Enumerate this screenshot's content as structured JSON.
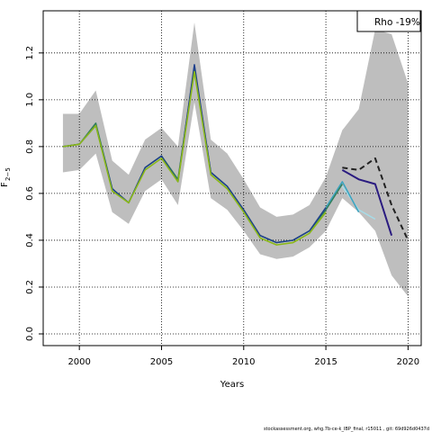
{
  "chart_data": {
    "type": "line",
    "title": "",
    "xlabel": "Years",
    "ylabel": "F",
    "ylabel_sub": "2−5",
    "xlim": [
      1997.8,
      2020.8
    ],
    "ylim": [
      -0.05,
      1.38
    ],
    "grid": true,
    "legend_position": "top-right",
    "legend_text": "Rho -19%",
    "x_ticks": [
      2000,
      2005,
      2010,
      2015,
      2020
    ],
    "y_ticks": [
      0.0,
      0.2,
      0.4,
      0.6,
      0.8,
      1.0,
      1.2
    ],
    "x_tick_labels": [
      "2000",
      "2005",
      "2010",
      "2015",
      "2020"
    ],
    "y_tick_labels": [
      "0.0",
      "0.2",
      "0.4",
      "0.6",
      "0.8",
      "1.0",
      "1.2"
    ],
    "confidence_band": {
      "color": "#bebebe",
      "x": [
        1999,
        2000,
        2001,
        2002,
        2003,
        2004,
        2005,
        2006,
        2007,
        2008,
        2009,
        2010,
        2011,
        2012,
        2013,
        2014,
        2015,
        2016,
        2017,
        2018,
        2019,
        2020
      ],
      "upper": [
        0.94,
        0.94,
        1.04,
        0.74,
        0.68,
        0.83,
        0.88,
        0.8,
        1.33,
        0.83,
        0.77,
        0.66,
        0.54,
        0.5,
        0.51,
        0.55,
        0.67,
        0.87,
        0.96,
        1.3,
        1.28,
        1.07
      ],
      "lower": [
        0.69,
        0.7,
        0.77,
        0.52,
        0.47,
        0.61,
        0.66,
        0.55,
        0.99,
        0.58,
        0.53,
        0.44,
        0.34,
        0.32,
        0.33,
        0.37,
        0.44,
        0.58,
        0.52,
        0.44,
        0.25,
        0.16
      ]
    },
    "series": [
      {
        "color": "#222222",
        "dash": "6,4",
        "width": 2,
        "x": [
          2016,
          2017,
          2018,
          2019,
          2020
        ],
        "values": [
          0.71,
          0.7,
          0.75,
          0.55,
          0.4
        ]
      },
      {
        "color": "#2a1b80",
        "dash": "",
        "width": 2,
        "x": [
          2016,
          2017,
          2018,
          2019
        ],
        "values": [
          0.7,
          0.66,
          0.64,
          0.42
        ]
      },
      {
        "color": "#a6dce8",
        "dash": "",
        "width": 1.5,
        "x": [
          2016,
          2017,
          2018
        ],
        "values": [
          0.63,
          0.53,
          0.49
        ]
      },
      {
        "color": "#3aa3c0",
        "dash": "",
        "width": 1.5,
        "x": [
          2015,
          2016,
          2017
        ],
        "values": [
          0.54,
          0.65,
          0.52
        ]
      },
      {
        "color": "#2e7d5a",
        "dash": "",
        "width": 1.5,
        "x": [
          1999,
          2000,
          2001,
          2002,
          2003,
          2004,
          2005,
          2006,
          2007,
          2008,
          2009,
          2010,
          2011,
          2012,
          2013,
          2014,
          2015,
          2016
        ],
        "values": [
          0.8,
          0.81,
          0.9,
          0.62,
          0.56,
          0.71,
          0.76,
          0.66,
          1.14,
          0.69,
          0.63,
          0.53,
          0.42,
          0.39,
          0.4,
          0.44,
          0.53,
          0.64
        ]
      },
      {
        "color": "#1e3f8c",
        "dash": "",
        "width": 1.5,
        "x": [
          1999,
          2000,
          2001,
          2002,
          2003,
          2004,
          2005,
          2006,
          2007,
          2008,
          2009,
          2010,
          2011,
          2012,
          2013,
          2014,
          2015
        ],
        "values": [
          0.8,
          0.81,
          0.89,
          0.62,
          0.56,
          0.71,
          0.76,
          0.65,
          1.15,
          0.69,
          0.63,
          0.53,
          0.42,
          0.39,
          0.4,
          0.44,
          0.54
        ]
      },
      {
        "color": "#8ab817",
        "dash": "",
        "width": 1.6,
        "x": [
          1999,
          2000,
          2001,
          2002,
          2003,
          2004,
          2005,
          2006,
          2007,
          2008,
          2009,
          2010,
          2011,
          2012,
          2013,
          2014,
          2015
        ],
        "values": [
          0.8,
          0.81,
          0.89,
          0.61,
          0.56,
          0.7,
          0.75,
          0.65,
          1.12,
          0.68,
          0.62,
          0.52,
          0.41,
          0.38,
          0.39,
          0.43,
          0.52
        ]
      }
    ]
  },
  "footer": "stockassessment.org, whg.7b-ce-k_IBP_final, r15011 , git: 69d926d0437d"
}
